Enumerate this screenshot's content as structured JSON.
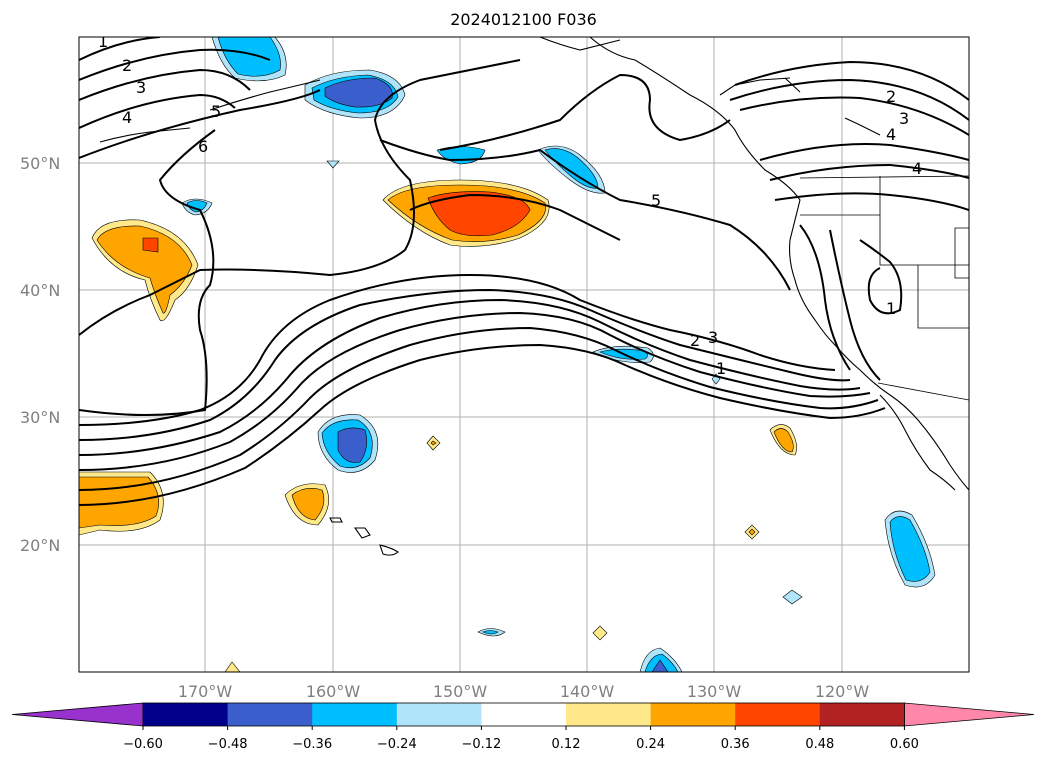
{
  "title": "2024012100 F036",
  "lat_labels": [
    "50°N",
    "40°N",
    "30°N",
    "20°N"
  ],
  "lon_labels": [
    "170°W",
    "160°W",
    "150°W",
    "140°W",
    "130°W",
    "120°W"
  ],
  "colorbar": {
    "ticks": [
      "−0.60",
      "−0.48",
      "−0.36",
      "−0.24",
      "−0.12",
      "0.12",
      "0.24",
      "0.36",
      "0.48",
      "0.60"
    ],
    "colors": [
      "#9932cc",
      "#00008b",
      "#3a5fcd",
      "#00bfff",
      "#afe4fa",
      "#ffffff",
      "#ffe98a",
      "#ffa500",
      "#ff4500",
      "#b22222",
      "#ff88aa"
    ]
  },
  "contour_labels": [
    "1",
    "2",
    "3",
    "4",
    "5",
    "6",
    "5",
    "2",
    "3",
    "4",
    "4",
    "2",
    "3",
    "1",
    "1"
  ],
  "fill_colors": {
    "light_blue": "#afe4fa",
    "blue": "#00bfff",
    "dark_blue": "#3a5fcd",
    "yellow": "#ffe98a",
    "orange": "#ffa500",
    "red_orange": "#ff4500"
  }
}
